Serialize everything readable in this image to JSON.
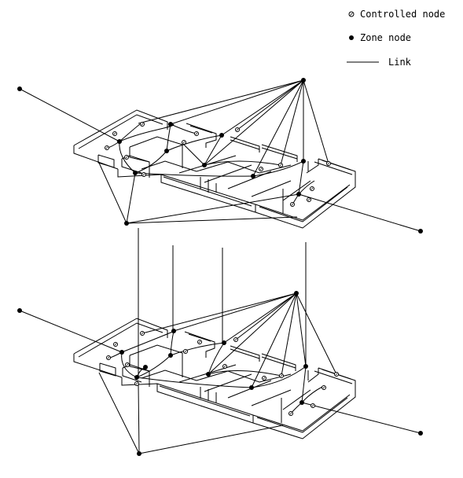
{
  "legend": {
    "controlled_label": "Controlled node",
    "zone_label": "Zone node",
    "link_label": "Link"
  },
  "colors": {
    "ink": "#000000",
    "background": "#ffffff"
  }
}
